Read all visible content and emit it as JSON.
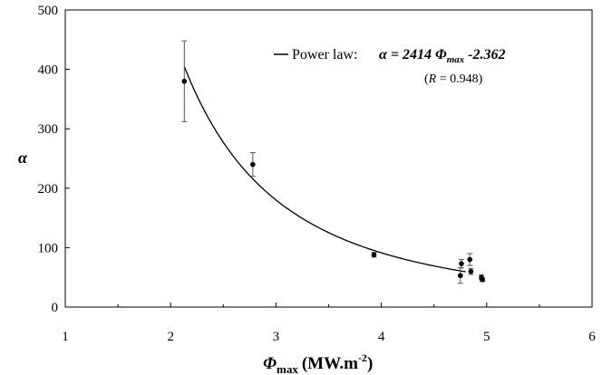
{
  "chart_data": {
    "type": "scatter",
    "xlabel": {
      "symbol": "Φ",
      "sub": "max",
      "unit": "(MW.m",
      "exp": "-2",
      "close": ")"
    },
    "ylabel": "α",
    "xlim": [
      1,
      6
    ],
    "ylim": [
      0,
      500
    ],
    "xticks": [
      1,
      2,
      3,
      4,
      5,
      6
    ],
    "yticks": [
      0,
      100,
      200,
      300,
      400,
      500
    ],
    "grid": false,
    "legend_position": "top-right",
    "points": [
      {
        "x": 2.13,
        "y": 380,
        "err": 68
      },
      {
        "x": 2.78,
        "y": 240,
        "err": 20
      },
      {
        "x": 3.93,
        "y": 88,
        "err": 4
      },
      {
        "x": 4.75,
        "y": 53,
        "err": 13
      },
      {
        "x": 4.76,
        "y": 73,
        "err": 7
      },
      {
        "x": 4.84,
        "y": 80,
        "err": 10
      },
      {
        "x": 4.85,
        "y": 60,
        "err": 5
      },
      {
        "x": 4.95,
        "y": 50,
        "err": 4
      },
      {
        "x": 4.96,
        "y": 46,
        "err": 3
      }
    ],
    "fit": {
      "name": "Power law",
      "coefficient": 2414,
      "exponent": -2.362,
      "x_range": [
        2.13,
        4.8
      ],
      "legend_label": "Power law:",
      "equation": {
        "lhs": "α = 2414 ",
        "phi": "Φ",
        "sub": "max",
        "rest": " -2.362"
      },
      "r_text": {
        "open": "(",
        "r": "R",
        "value": " = 0.948)"
      }
    }
  }
}
